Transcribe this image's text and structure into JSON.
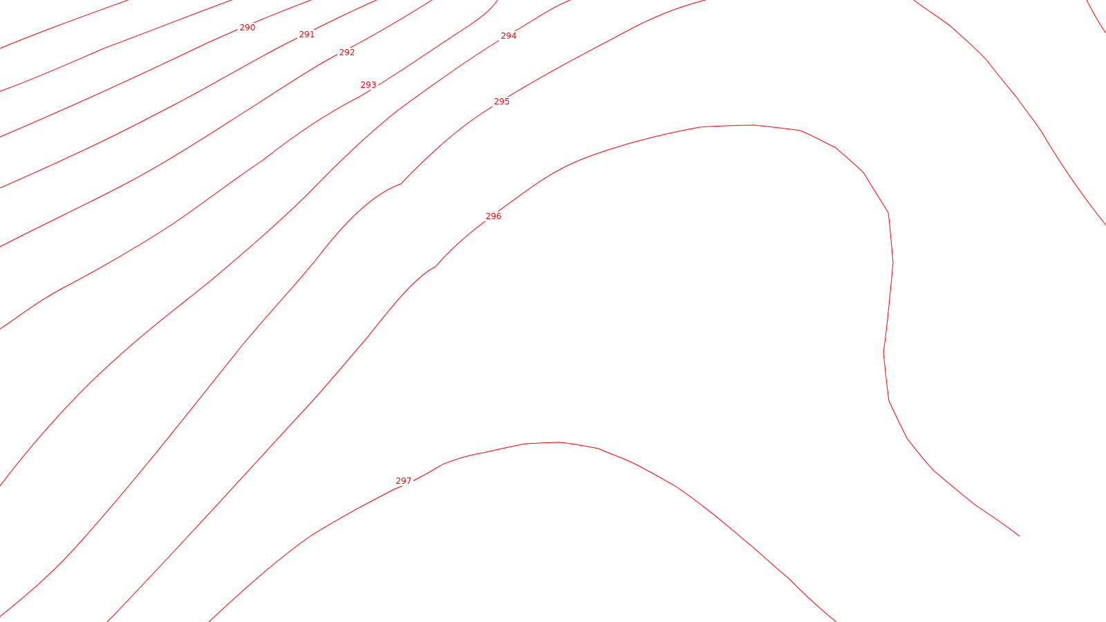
{
  "map": {
    "line_color": "#ff0000",
    "background_color": "#ffffff",
    "contour_labels": [
      "290",
      "291",
      "292",
      "293",
      "294",
      "295",
      "296",
      "297"
    ]
  }
}
